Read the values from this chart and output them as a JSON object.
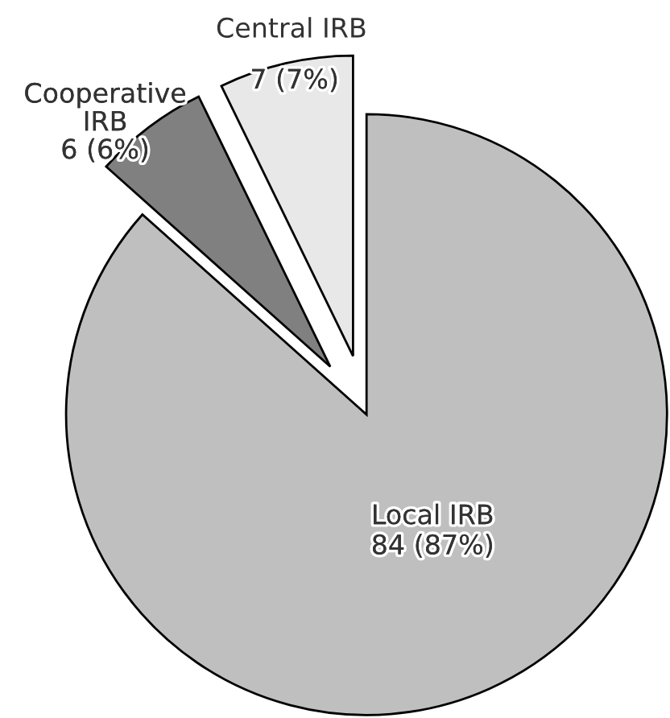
{
  "chart_data": {
    "type": "pie",
    "categories": [
      "Local IRB",
      "Cooperative IRB",
      "Central IRB"
    ],
    "values": [
      84,
      6,
      7
    ],
    "value_labels": [
      "84 (87%)",
      "6 (6%)",
      "7 (7%)"
    ],
    "colors": [
      "#bfbfbf",
      "#808080",
      "#e8e8e8"
    ],
    "legend": false
  }
}
